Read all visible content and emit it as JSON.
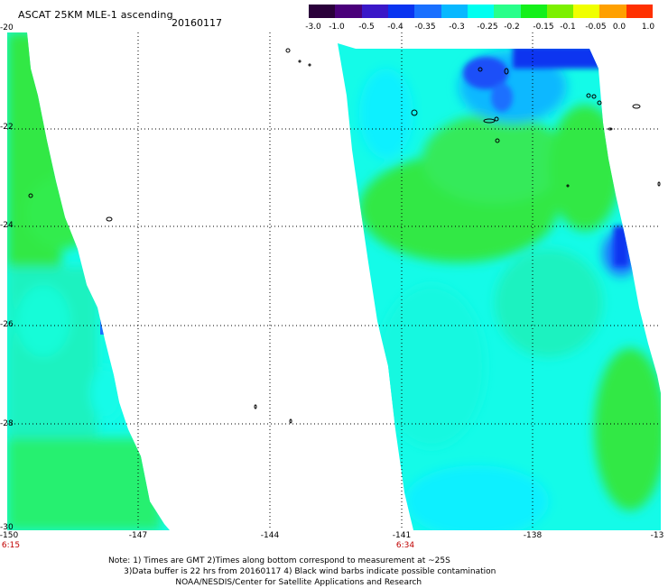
{
  "header": {
    "title": "ASCAT 25KM MLE-1 ascending",
    "date": "20160117"
  },
  "colorbar": {
    "labels": [
      "-3.0",
      "-1.0",
      "-0.5",
      "-0.4",
      "-0.35",
      "-0.3",
      "-0.25",
      "-0.2",
      "-0.15",
      "-0.1",
      "-0.05",
      "0.0",
      "1.0"
    ],
    "colors": [
      "#2a003a",
      "#4a007a",
      "#3a18c8",
      "#0a34f0",
      "#1a70ff",
      "#08b8ff",
      "#00fff0",
      "#28ff8a",
      "#14f01a",
      "#7cf000",
      "#f0ff00",
      "#ffa000",
      "#ff3000"
    ]
  },
  "axes": {
    "y_labels": [
      "-20",
      "-22",
      "-24",
      "-26",
      "-28",
      "-30"
    ],
    "x_labels": [
      "-150",
      "-147",
      "-144",
      "-141",
      "-138",
      "-13"
    ]
  },
  "times": [
    "6:15",
    "6:34"
  ],
  "note_lines": [
    "Note: 1) Times are GMT 2)Times along bottom correspond to measurement at ~25S",
    "      3)Data buffer is 22 hrs from 20160117 4) Black wind barbs indicate possible contamination",
    "                          NOAA/NESDIS/Center for Satellite Applications and Research"
  ],
  "palette": {
    "green": "#30e844",
    "cyan": "#14fbe8",
    "teal": "#1ef2c0",
    "blue": "#0a34f0",
    "mid_blue": "#1a70ff"
  }
}
